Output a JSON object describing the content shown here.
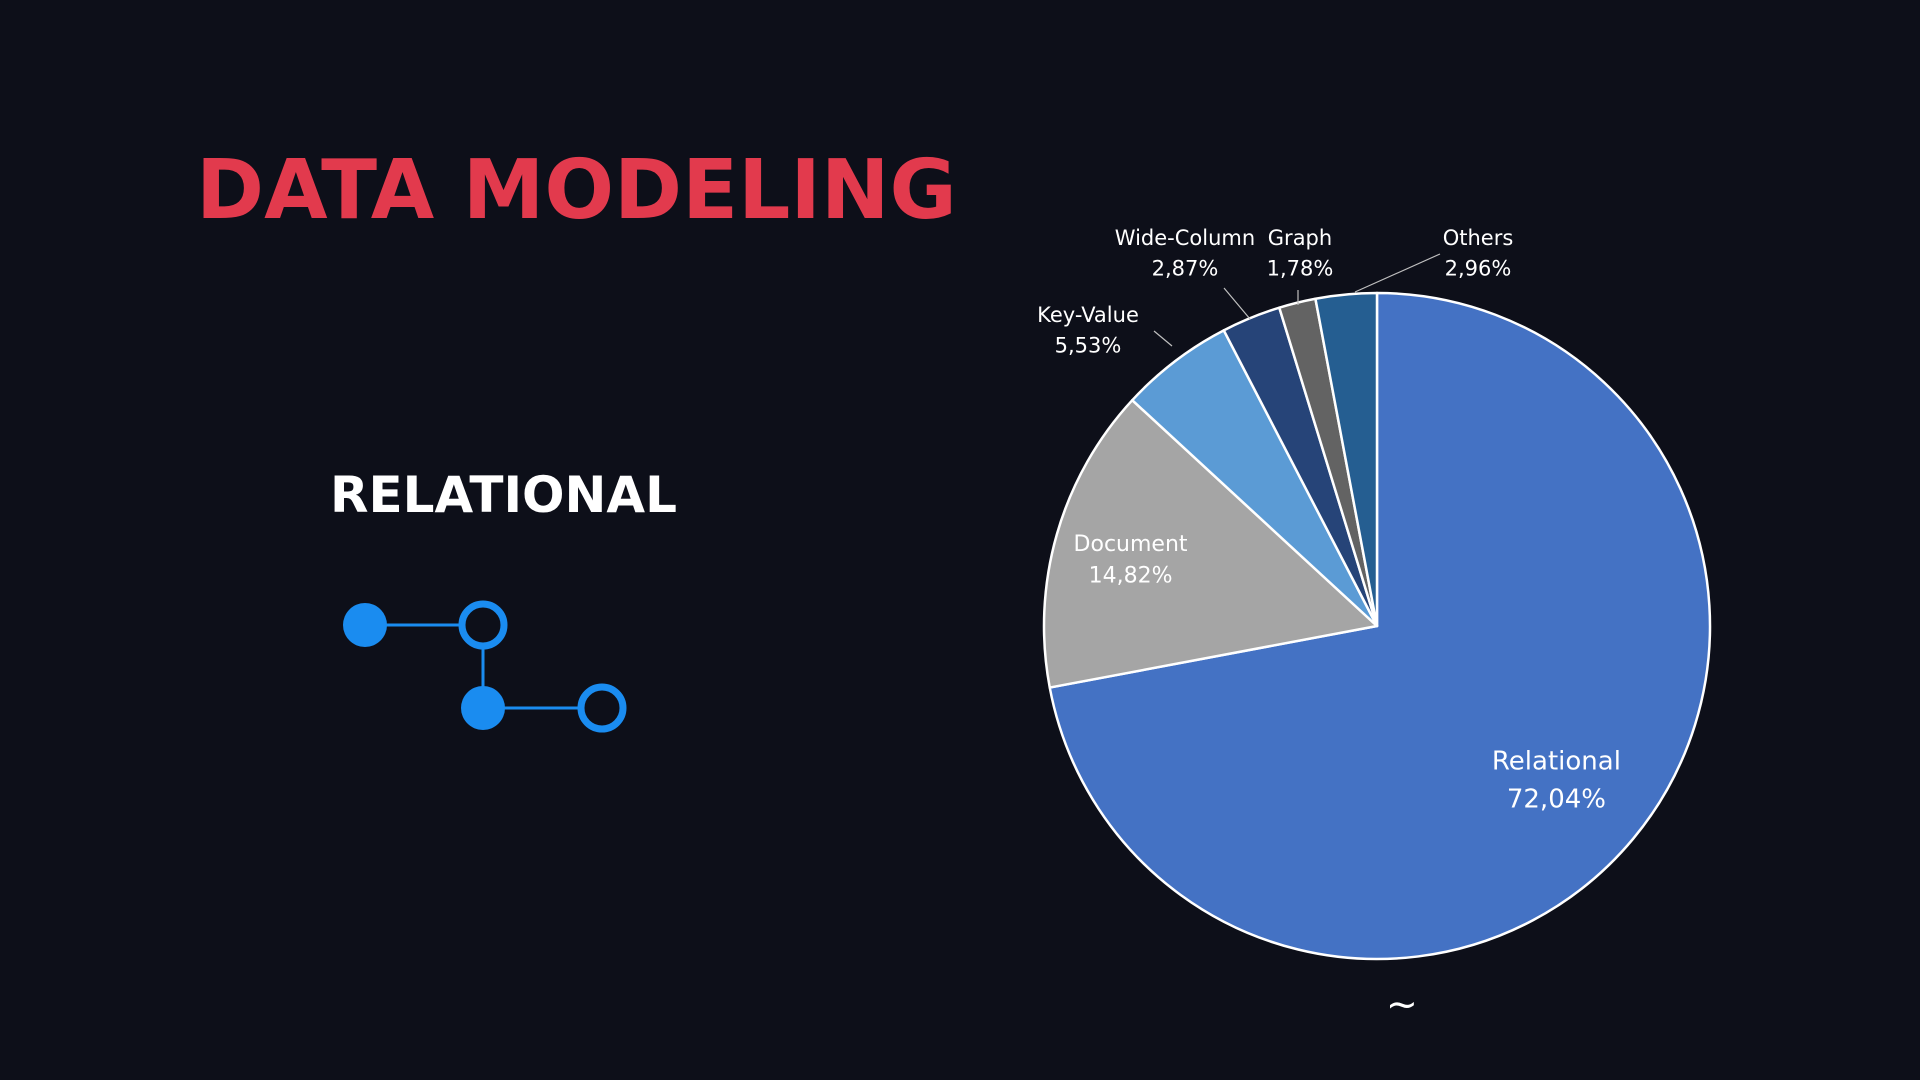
{
  "slide": {
    "title": "DATA MODELING",
    "subtitle": "RELATIONAL",
    "footer_symbol": "~",
    "icon": "relational-nodes-icon",
    "colors": {
      "background": "#0d0f19",
      "title": "#e23a4d",
      "subtitle": "#ffffff",
      "icon": "#1a8cf0"
    }
  },
  "chart_data": {
    "type": "pie",
    "title": "",
    "slices": [
      {
        "label": "Relational",
        "value": 72.04,
        "value_label": "72,04%",
        "color": "#4472c4"
      },
      {
        "label": "Document",
        "value": 14.82,
        "value_label": "14,82%",
        "color": "#a5a5a5"
      },
      {
        "label": "Key-Value",
        "value": 5.53,
        "value_label": "5,53%",
        "color": "#5b9bd5"
      },
      {
        "label": "Wide-Column",
        "value": 2.87,
        "value_label": "2,87%",
        "color": "#264478"
      },
      {
        "label": "Graph",
        "value": 1.78,
        "value_label": "1,78%",
        "color": "#636363"
      },
      {
        "label": "Others",
        "value": 2.96,
        "value_label": "2,96%",
        "color": "#255e91"
      }
    ],
    "start_angle_deg": 0,
    "direction": "clockwise",
    "slice_border_color": "#ffffff",
    "legend": "none",
    "labels": "data labels with leader lines"
  }
}
